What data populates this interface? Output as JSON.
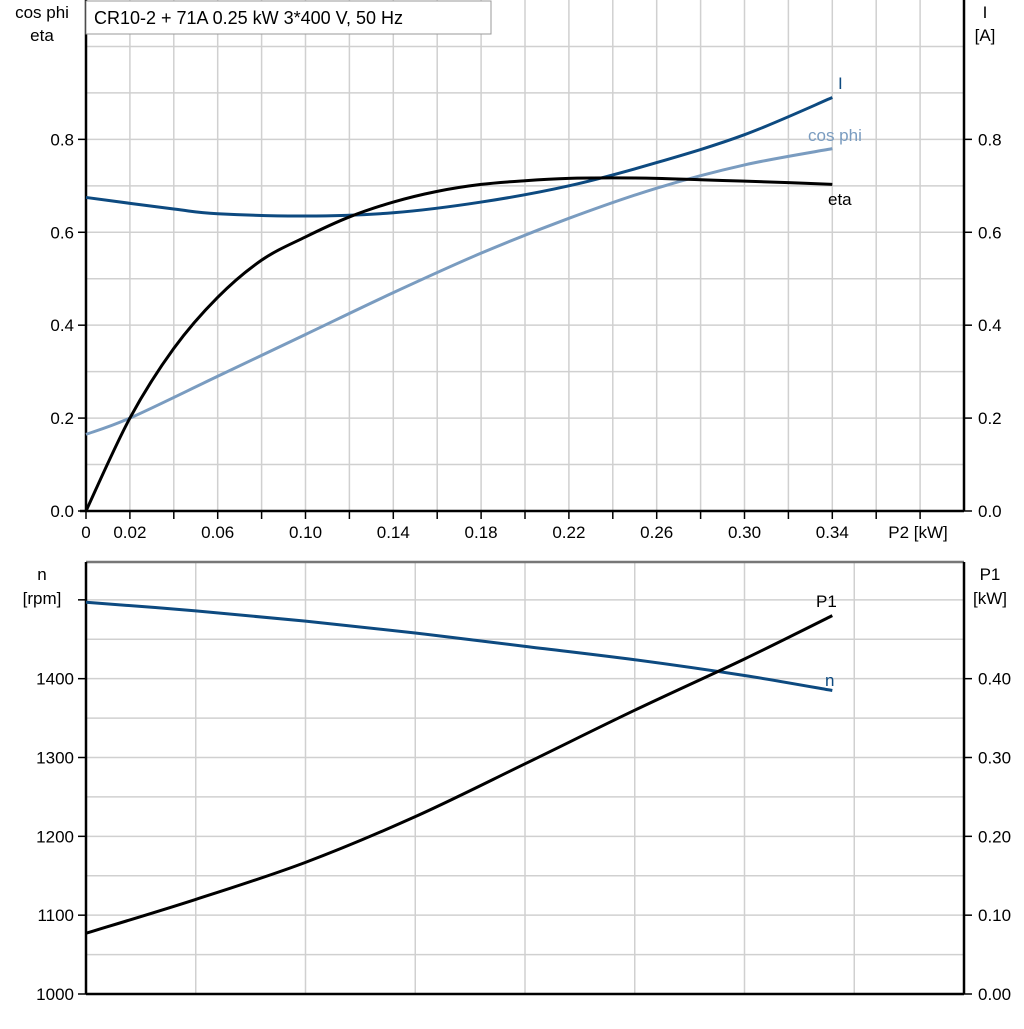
{
  "title": "CR10-2 + 71A   0.25 kW   3*400 V, 50 Hz",
  "colors": {
    "I": "#0d4a80",
    "cos_phi": "#7a9cc0",
    "eta": "#000000",
    "n": "#0d4a80",
    "P1": "#000000",
    "grid": "#d0d0d0"
  },
  "chart_data": [
    {
      "type": "line",
      "xlabel": "P2 [kW]",
      "ylabel_left": [
        "cos phi",
        "eta"
      ],
      "ylabel_right": [
        "I",
        "[A]"
      ],
      "xlim": [
        0,
        0.4
      ],
      "ylim_left": [
        0,
        1.1
      ],
      "ylim_right": [
        0,
        1.1
      ],
      "x_tick_labels": [
        "0",
        "0.02",
        "0.06",
        "0.10",
        "0.14",
        "0.18",
        "0.22",
        "0.26",
        "0.30",
        "0.34"
      ],
      "y_tick_labels_left": [
        "0.0",
        "0.2",
        "0.4",
        "0.6",
        "0.8"
      ],
      "y_tick_labels_right": [
        "0.0",
        "0.2",
        "0.4",
        "0.6",
        "0.8"
      ],
      "grid": true,
      "series": [
        {
          "name": "I",
          "axis": "right",
          "x": [
            0,
            0.04,
            0.06,
            0.1,
            0.14,
            0.18,
            0.22,
            0.26,
            0.3,
            0.34
          ],
          "y": [
            0.675,
            0.65,
            0.64,
            0.635,
            0.642,
            0.665,
            0.7,
            0.75,
            0.81,
            0.89
          ]
        },
        {
          "name": "cos phi",
          "axis": "left",
          "x": [
            0,
            0.02,
            0.06,
            0.1,
            0.14,
            0.18,
            0.22,
            0.26,
            0.3,
            0.34
          ],
          "y": [
            0.165,
            0.2,
            0.29,
            0.38,
            0.47,
            0.555,
            0.63,
            0.695,
            0.745,
            0.78
          ]
        },
        {
          "name": "eta",
          "axis": "left",
          "x": [
            0,
            0.02,
            0.04,
            0.06,
            0.08,
            0.1,
            0.12,
            0.14,
            0.16,
            0.18,
            0.2,
            0.22,
            0.24,
            0.26,
            0.28,
            0.3,
            0.32,
            0.34
          ],
          "y": [
            0,
            0.2,
            0.35,
            0.46,
            0.54,
            0.59,
            0.633,
            0.665,
            0.688,
            0.703,
            0.711,
            0.716,
            0.717,
            0.716,
            0.713,
            0.71,
            0.707,
            0.703
          ]
        }
      ]
    },
    {
      "type": "line",
      "ylabel_left": [
        "n",
        "[rpm]"
      ],
      "ylabel_right": [
        "P1",
        "[kW]"
      ],
      "xlim": [
        0,
        0.4
      ],
      "ylim_left": [
        1000,
        1548
      ],
      "ylim_right": [
        0,
        0.548
      ],
      "y_tick_labels_left": [
        "1000",
        "1100",
        "1200",
        "1300",
        "1400"
      ],
      "y_tick_labels_right": [
        "0.00",
        "0.10",
        "0.20",
        "0.30",
        "0.40"
      ],
      "grid": true,
      "series": [
        {
          "name": "n",
          "axis": "left",
          "x": [
            0,
            0.05,
            0.1,
            0.15,
            0.2,
            0.25,
            0.3,
            0.34
          ],
          "y": [
            1497,
            1486,
            1473,
            1458,
            1441,
            1424,
            1404,
            1385
          ]
        },
        {
          "name": "P1",
          "axis": "right",
          "x": [
            0,
            0.05,
            0.1,
            0.15,
            0.2,
            0.25,
            0.3,
            0.34
          ],
          "y": [
            0.077,
            0.12,
            0.167,
            0.225,
            0.292,
            0.36,
            0.425,
            0.48
          ]
        }
      ]
    }
  ]
}
